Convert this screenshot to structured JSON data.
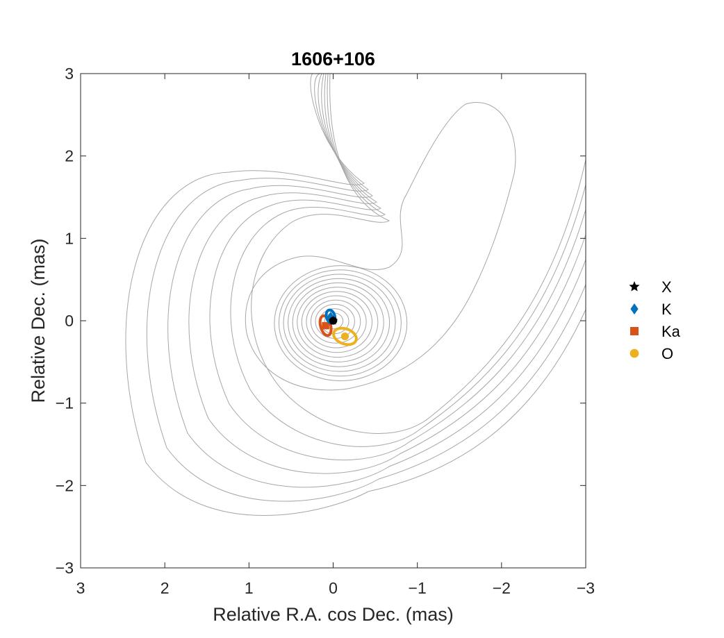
{
  "chart_data": {
    "type": "scatter",
    "title": "1606+106",
    "xlabel": "Relative R.A. cos Dec. (mas)",
    "ylabel": "Relative Dec. (mas)",
    "xlim": [
      3,
      -3
    ],
    "ylim": [
      -3,
      3
    ],
    "xticks": [
      3,
      2,
      1,
      0,
      -1,
      -2,
      -3
    ],
    "yticks": [
      -3,
      -2,
      -1,
      0,
      1,
      2,
      3
    ],
    "grid": false,
    "legend_placement": "right",
    "contours": {
      "color": "#a6a6a6",
      "description_levels": 14
    },
    "series": [
      {
        "name": "X",
        "marker": "star",
        "color": "#000000",
        "x": 0.0,
        "y": 0.0,
        "err_x": 0.03,
        "err_y": 0.03,
        "err_angle": 0
      },
      {
        "name": "K",
        "marker": "diamond",
        "color": "#0072bd",
        "x": 0.03,
        "y": 0.05,
        "err_x": 0.05,
        "err_y": 0.08,
        "err_angle": -15
      },
      {
        "name": "Ka",
        "marker": "square",
        "color": "#d95319",
        "x": 0.09,
        "y": -0.06,
        "err_x": 0.06,
        "err_y": 0.12,
        "err_angle": -15
      },
      {
        "name": "O",
        "marker": "circle",
        "color": "#edb120",
        "x": -0.14,
        "y": -0.19,
        "err_x": 0.14,
        "err_y": 0.09,
        "err_angle": 20
      }
    ]
  }
}
